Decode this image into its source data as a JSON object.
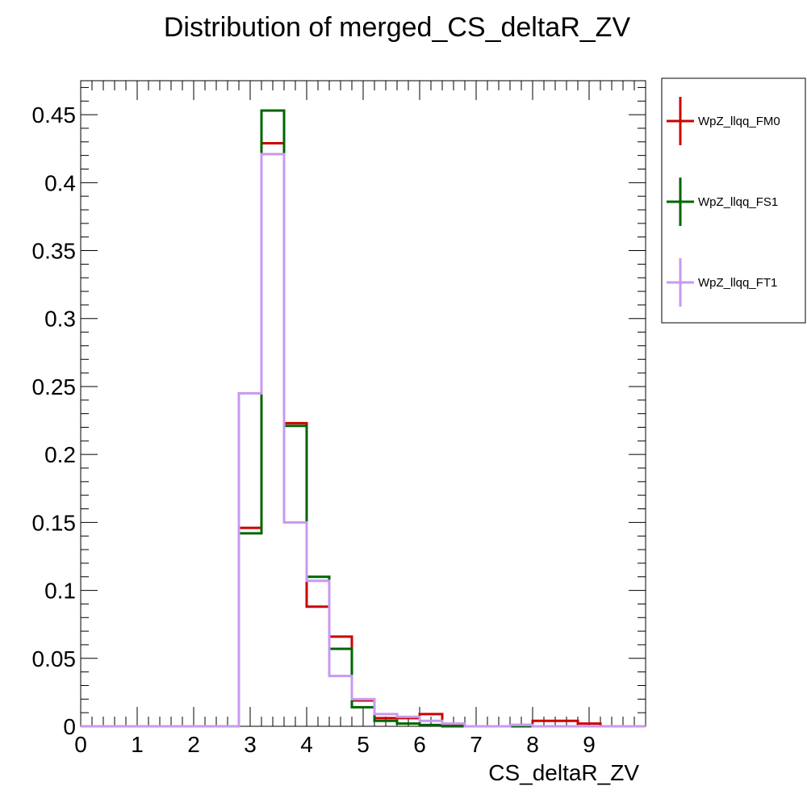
{
  "chart_data": {
    "type": "histogram",
    "title": "Distribution of merged_CS_deltaR_ZV",
    "xlabel": "CS_deltaR_ZV",
    "ylabel": "",
    "xlim": [
      0,
      10
    ],
    "ylim": [
      0,
      0.475
    ],
    "bin_edges": [
      0,
      0.4,
      0.8,
      1.2,
      1.6,
      2.0,
      2.4,
      2.8,
      3.2,
      3.6,
      4.0,
      4.4,
      4.8,
      5.2,
      5.6,
      6.0,
      6.4,
      6.8,
      7.2,
      7.6,
      8.0,
      8.4,
      8.8,
      9.2,
      9.6,
      10.0
    ],
    "x_ticks": [
      "0",
      "1",
      "2",
      "3",
      "4",
      "5",
      "6",
      "7",
      "8",
      "9"
    ],
    "y_ticks": [
      "0",
      "0.05",
      "0.1",
      "0.15",
      "0.2",
      "0.25",
      "0.3",
      "0.35",
      "0.4",
      "0.45"
    ],
    "grid": false,
    "legend_position": "right, outside plot",
    "series": [
      {
        "name": "WpZ_llqq_FM0",
        "color": "#cc0000",
        "values": [
          0,
          0,
          0,
          0,
          0,
          0,
          0,
          0.146,
          0.429,
          0.223,
          0.088,
          0.066,
          0.019,
          0.006,
          0.006,
          0.009,
          0.001,
          0,
          0,
          0.001,
          0.004,
          0.004,
          0.002,
          0,
          0
        ]
      },
      {
        "name": "WpZ_llqq_FS1",
        "color": "#006400",
        "values": [
          0,
          0,
          0,
          0,
          0,
          0,
          0,
          0.142,
          0.453,
          0.221,
          0.11,
          0.057,
          0.014,
          0.004,
          0.002,
          0.001,
          0,
          0,
          0,
          0,
          0,
          0,
          0,
          0,
          0
        ]
      },
      {
        "name": "WpZ_llqq_FT1",
        "color": "#c899f0",
        "values": [
          0,
          0,
          0,
          0,
          0,
          0,
          0,
          0.245,
          0.421,
          0.15,
          0.107,
          0.037,
          0.02,
          0.009,
          0.007,
          0.004,
          0.002,
          0,
          0,
          0.001,
          0,
          0,
          0,
          0,
          0
        ]
      }
    ]
  }
}
